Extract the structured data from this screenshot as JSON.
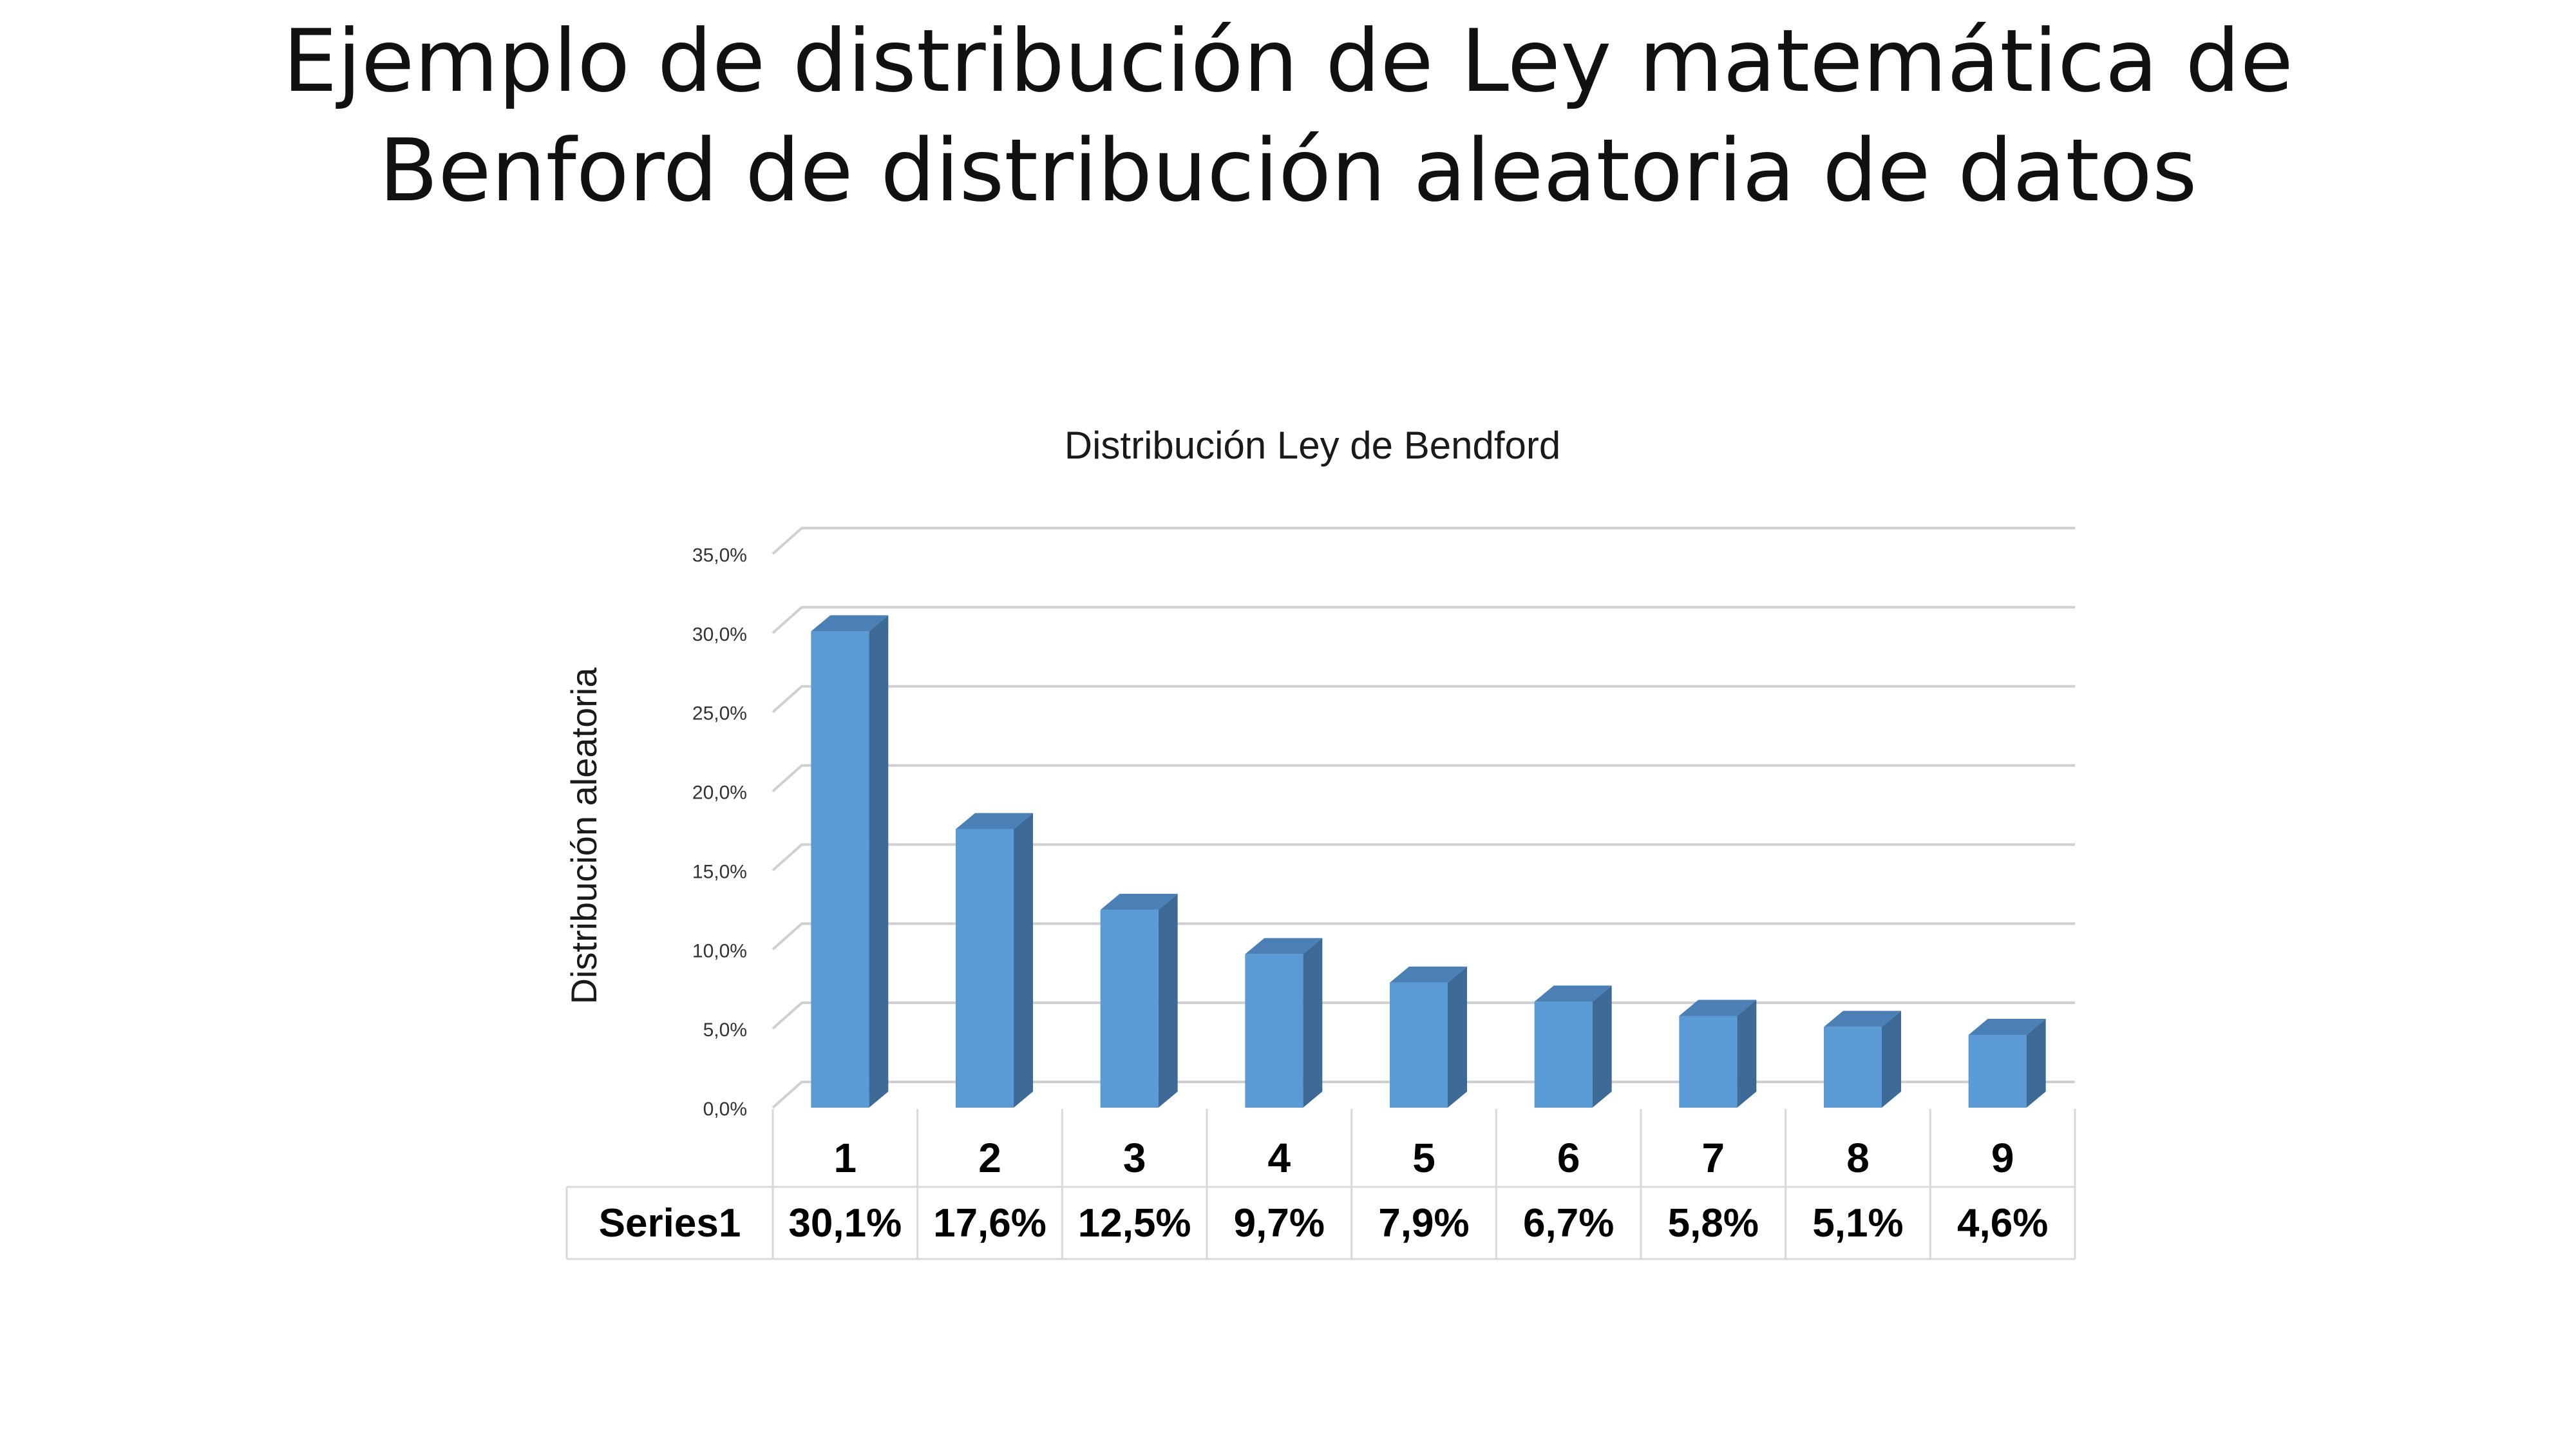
{
  "slide": {
    "title_line1": "Ejemplo de distribución de Ley matemática de",
    "title_line2": "Benford de distribución aleatoria de datos"
  },
  "chart_data": {
    "type": "bar",
    "title": "Distribución Ley de Bendford",
    "xlabel": "",
    "ylabel": "Distribución aleatoria",
    "categories": [
      "1",
      "2",
      "3",
      "4",
      "5",
      "6",
      "7",
      "8",
      "9"
    ],
    "series": [
      {
        "name": "Series1",
        "values": [
          30.1,
          17.6,
          12.5,
          9.7,
          7.9,
          6.7,
          5.8,
          5.1,
          4.6
        ],
        "labels": [
          "30,1%",
          "17,6%",
          "12,5%",
          "9,7%",
          "7,9%",
          "6,7%",
          "5,8%",
          "5,1%",
          "4,6%"
        ]
      }
    ],
    "yticks": [
      "0,0%",
      "5,0%",
      "10,0%",
      "15,0%",
      "20,0%",
      "25,0%",
      "30,0%",
      "35,0%"
    ],
    "ylim": [
      0,
      35
    ],
    "grid": true,
    "three_d": true,
    "legend": "data-table",
    "colors": {
      "bar_front": "#5b9bd5",
      "bar_side": "#3d6a96",
      "bar_top": "#4a80b5",
      "gridline": "#d0d0d0",
      "table_border": "#d9d9d9"
    }
  }
}
